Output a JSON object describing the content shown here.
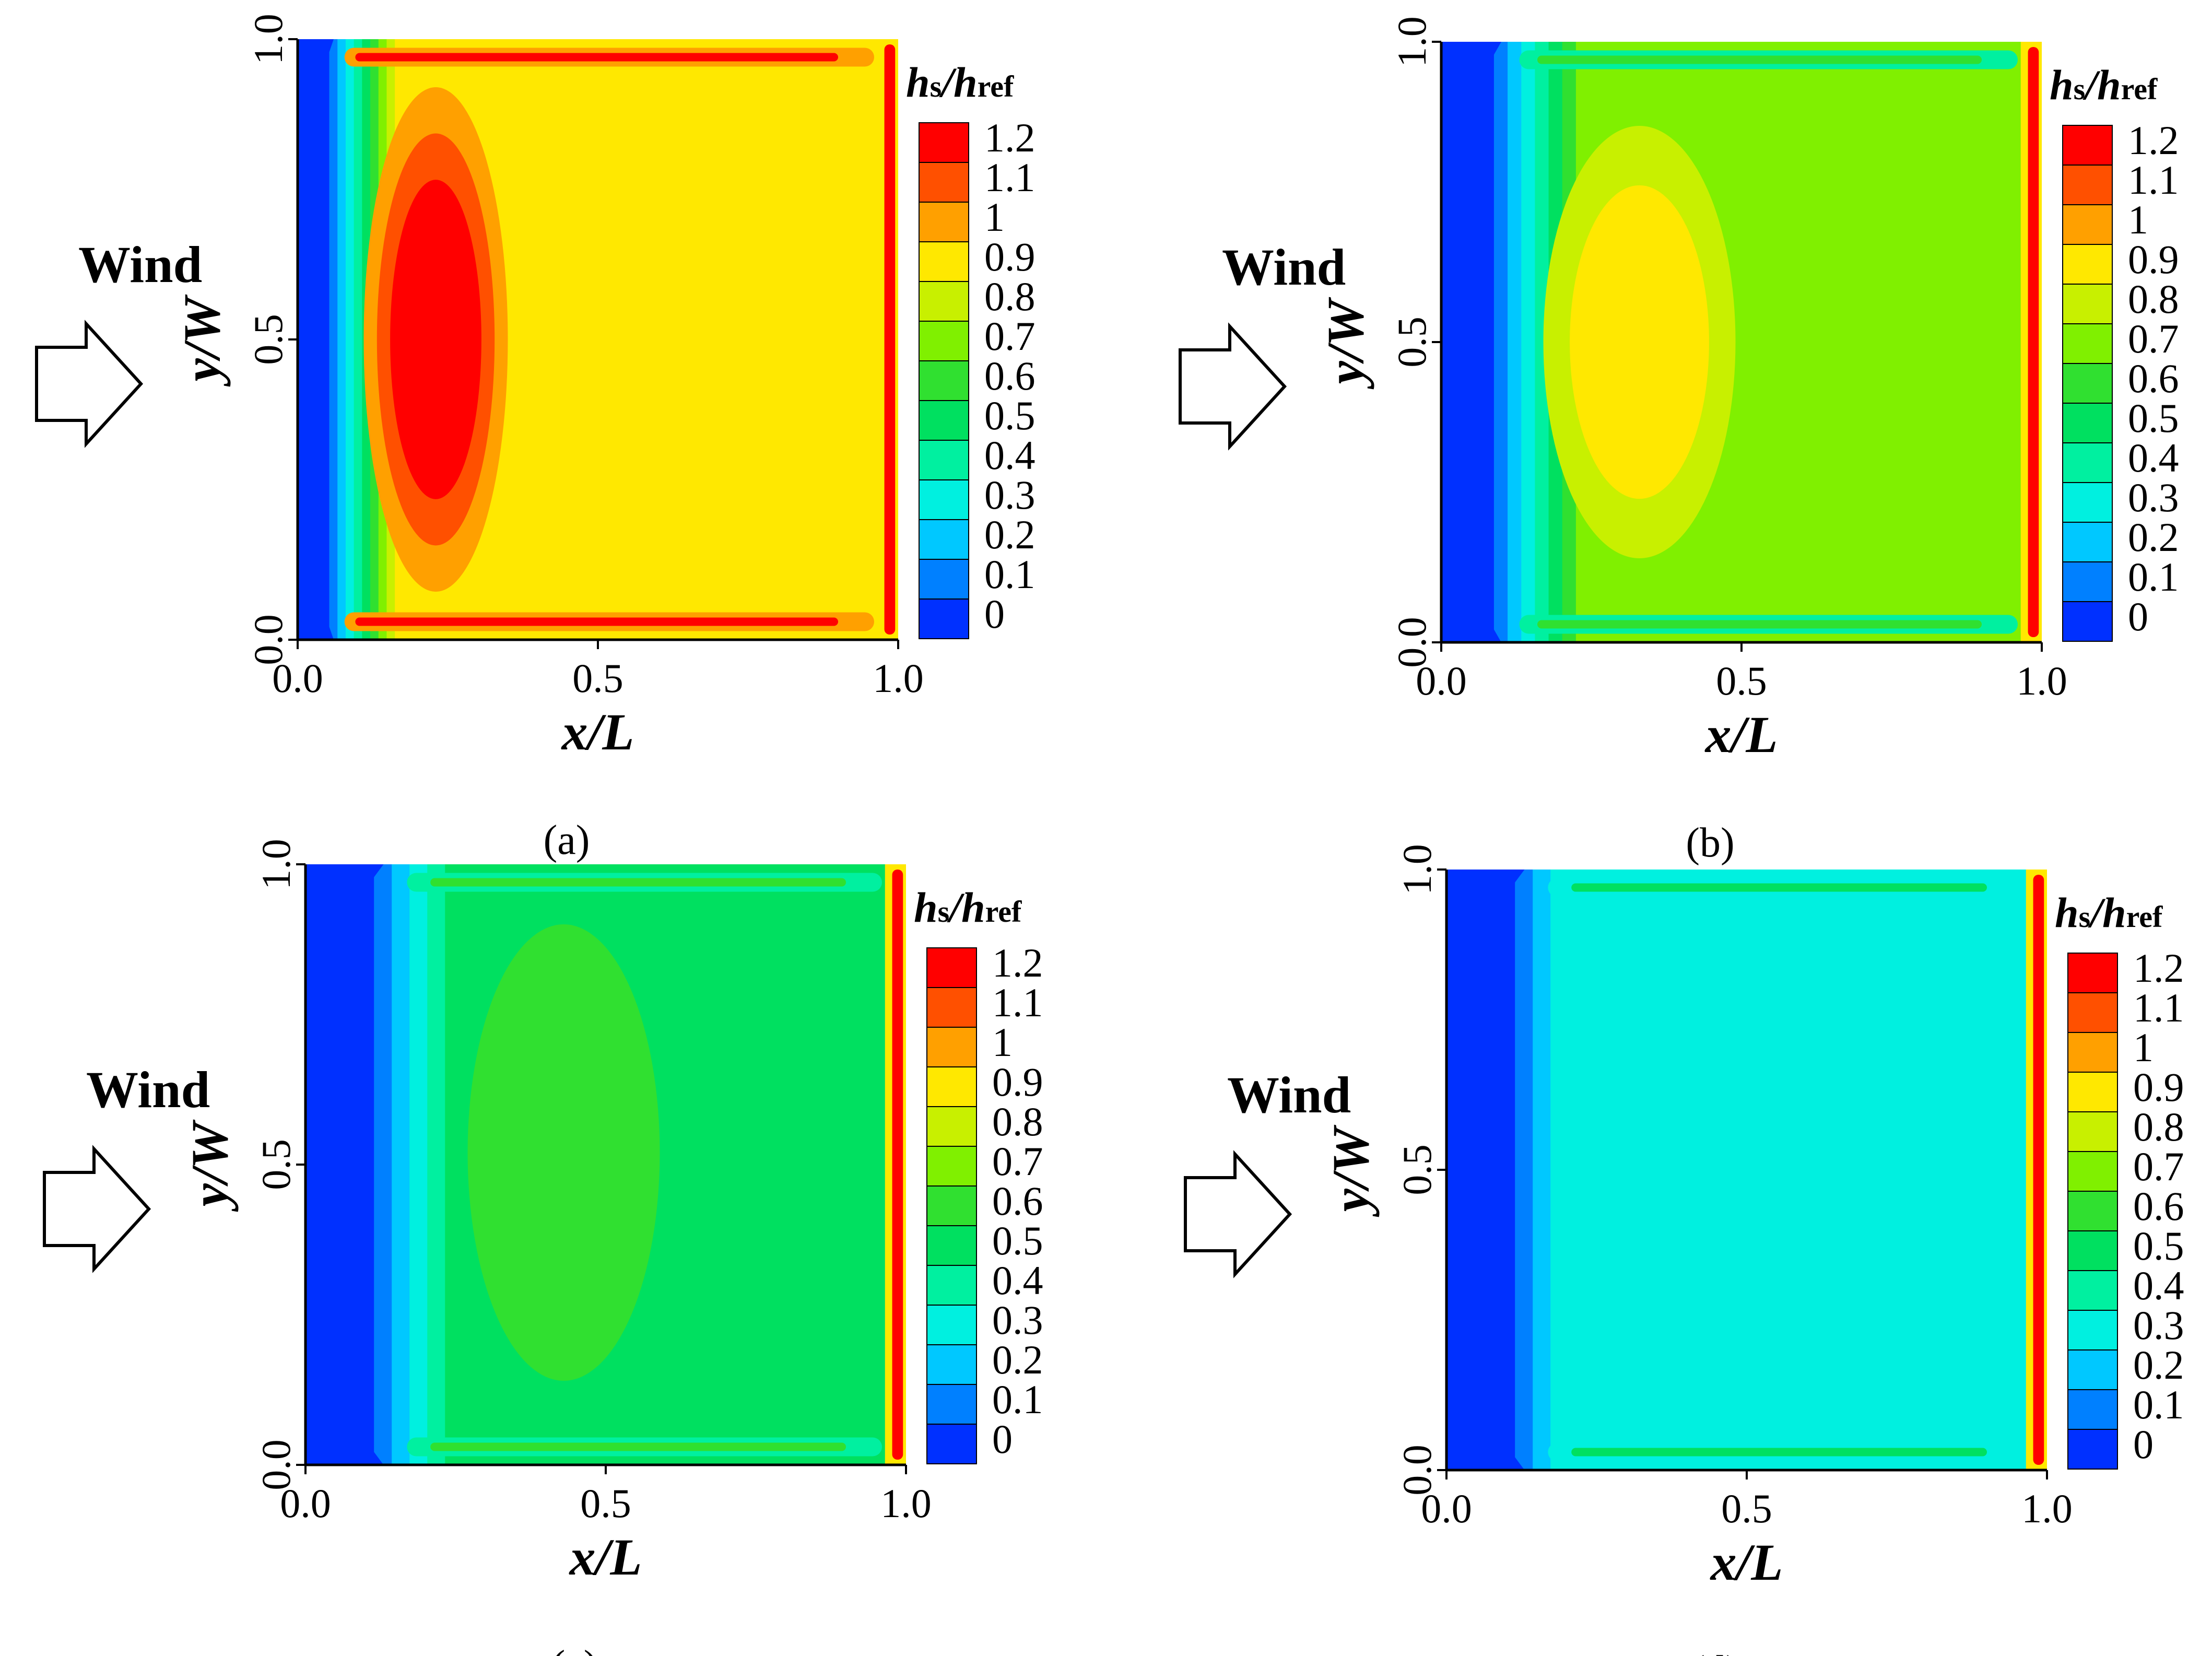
{
  "chart_data": [
    {
      "type": "heatmap",
      "panel_label": "(a)",
      "title": "",
      "xlabel": "x/L",
      "ylabel": "y/W",
      "x_ticks": [
        "0.0",
        "0.5",
        "1.0"
      ],
      "y_ticks": [
        "0.0",
        "0.5",
        "1.0"
      ],
      "xlim": [
        0,
        1
      ],
      "ylim": [
        0,
        1
      ],
      "annotation": "Wind",
      "legend_title": {
        "main_h": "h",
        "sub_s": "s",
        "slash": "/",
        "ref_h": "h",
        "sub_ref": "ref"
      },
      "plateau_value": 0.9,
      "core_value": 1.2,
      "core_center": [
        0.23,
        0.5
      ],
      "core_radius": [
        0.12,
        0.42
      ],
      "leading_value": 0.0,
      "leading_width": 0.06,
      "edge_strip_value": 1.0,
      "trailing_value": 1.2
    },
    {
      "type": "heatmap",
      "panel_label": "(b)",
      "title": "",
      "xlabel": "x/L",
      "ylabel": "y/W",
      "x_ticks": [
        "0.0",
        "0.5",
        "1.0"
      ],
      "y_ticks": [
        "0.0",
        "0.5",
        "1.0"
      ],
      "xlim": [
        0,
        1
      ],
      "ylim": [
        0,
        1
      ],
      "annotation": "Wind",
      "legend_title": {
        "main_h": "h",
        "sub_s": "s",
        "slash": "/",
        "ref_h": "h",
        "sub_ref": "ref"
      },
      "plateau_value": 0.7,
      "core_value": 0.9,
      "core_center": [
        0.33,
        0.5
      ],
      "core_radius": [
        0.16,
        0.36
      ],
      "leading_value": 0.0,
      "leading_width": 0.1,
      "edge_strip_value": 0.4,
      "trailing_value": 1.2
    },
    {
      "type": "heatmap",
      "panel_label": "(c)",
      "title": "",
      "xlabel": "x/L",
      "ylabel": "y/W",
      "x_ticks": [
        "0.0",
        "0.5",
        "1.0"
      ],
      "y_ticks": [
        "0.0",
        "0.5",
        "1.0"
      ],
      "xlim": [
        0,
        1
      ],
      "ylim": [
        0,
        1
      ],
      "annotation": "Wind",
      "legend_title": {
        "main_h": "h",
        "sub_s": "s",
        "slash": "/",
        "ref_h": "h",
        "sub_ref": "ref"
      },
      "plateau_value": 0.5,
      "core_value": 0.6,
      "core_center": [
        0.43,
        0.52
      ],
      "core_radius": [
        0.16,
        0.38
      ],
      "leading_value": 0.0,
      "leading_width": 0.13,
      "edge_strip_value": 0.4,
      "trailing_value": 1.2
    },
    {
      "type": "heatmap",
      "panel_label": "(d)",
      "title": "",
      "xlabel": "x/L",
      "ylabel": "y/W",
      "x_ticks": [
        "0.0",
        "0.5",
        "1.0"
      ],
      "y_ticks": [
        "0.0",
        "0.5",
        "1.0"
      ],
      "xlim": [
        0,
        1
      ],
      "ylim": [
        0,
        1
      ],
      "annotation": "Wind",
      "legend_title": {
        "main_h": "h",
        "sub_s": "s",
        "slash": "/",
        "ref_h": "h",
        "sub_ref": "ref"
      },
      "plateau_value": 0.3,
      "core_value": 0.3,
      "core_center": [
        0.5,
        0.5
      ],
      "core_radius": [
        0.0,
        0.0
      ],
      "leading_value": 0.0,
      "leading_width": 0.13,
      "edge_strip_value": 0.3,
      "trailing_value": 1.2
    }
  ],
  "colorbar": {
    "levels": [
      "1.2",
      "1.1",
      "1",
      "0.9",
      "0.8",
      "0.7",
      "0.6",
      "0.5",
      "0.4",
      "0.3",
      "0.2",
      "0.1",
      "0"
    ],
    "colors": [
      "#ff0000",
      "#ff5000",
      "#ffa000",
      "#ffe800",
      "#c8f000",
      "#80f000",
      "#30e030",
      "#00e060",
      "#00f0a0",
      "#00f0e0",
      "#00c8ff",
      "#0080ff",
      "#0030ff"
    ]
  }
}
